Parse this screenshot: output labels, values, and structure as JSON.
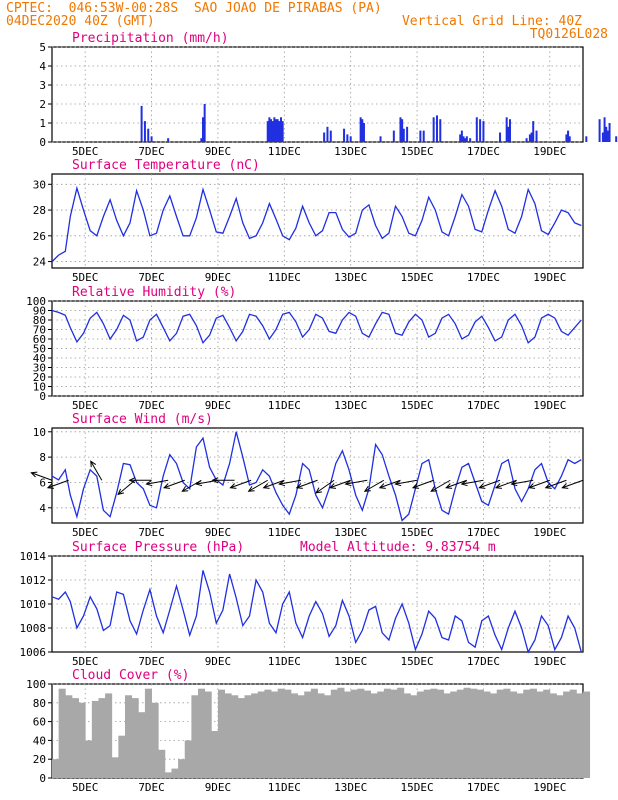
{
  "header": {
    "line1": "CPTEC:  046:53W-00:28S  SAO JOAO DE PIRABAS (PA)",
    "line2_left": "04DEC2020 40Z (GMT)",
    "line2_right": "Vertical Grid Line: 40Z",
    "line3_right": "TQ0126L028"
  },
  "x_ticks": [
    "5DEC",
    "7DEC",
    "9DEC",
    "11DEC",
    "13DEC",
    "15DEC",
    "17DEC",
    "19DEC"
  ],
  "panels": [
    {
      "id": "precip",
      "title": "Precipitation (mm/h)",
      "yticks": [
        "0",
        "1",
        "2",
        "3",
        "4",
        "5"
      ]
    },
    {
      "id": "temp",
      "title": "Surface Temperature (nC)",
      "yticks": [
        "24",
        "26",
        "28",
        "30"
      ]
    },
    {
      "id": "rh",
      "title": "Relative Humidity (%)",
      "yticks": [
        "0",
        "10",
        "20",
        "30",
        "40",
        "50",
        "60",
        "70",
        "80",
        "90",
        "100"
      ]
    },
    {
      "id": "wind",
      "title": "Surface Wind (m/s)",
      "yticks": [
        "4",
        "6",
        "8",
        "10"
      ]
    },
    {
      "id": "pres",
      "title": "Surface Pressure (hPa)",
      "extra": "Model Altitude: 9.83754 m",
      "yticks": [
        "1006",
        "1008",
        "1010",
        "1012",
        "1014"
      ]
    },
    {
      "id": "cloud",
      "title": "Cloud Cover (%)",
      "yticks": [
        "0",
        "20",
        "40",
        "60",
        "80",
        "100"
      ]
    }
  ],
  "colors": {
    "header": "#f07800",
    "title": "#e00080",
    "line": "#2030e0",
    "cloud": "#a8a8a8",
    "grid": "#9a9a9a"
  },
  "chart_data": [
    {
      "type": "bar",
      "title": "Precipitation (mm/h)",
      "x_unit": "days after 04DEC2020 00Z",
      "ylim": [
        0,
        5
      ],
      "x": [
        2.7,
        2.8,
        2.9,
        3.0,
        3.5,
        4.5,
        4.55,
        4.6,
        6.5,
        6.55,
        6.6,
        6.65,
        6.7,
        6.75,
        6.8,
        6.85,
        6.9,
        6.95,
        8.2,
        8.3,
        8.4,
        8.8,
        8.9,
        9.0,
        9.3,
        9.35,
        9.4,
        9.9,
        10.3,
        10.5,
        10.55,
        10.6,
        10.7,
        11.1,
        11.2,
        11.5,
        11.6,
        11.7,
        12.3,
        12.35,
        12.4,
        12.45,
        12.5,
        12.6,
        12.8,
        12.9,
        13.0,
        13.5,
        13.7,
        13.75,
        13.8,
        14.3,
        14.4,
        14.45,
        14.5,
        14.6,
        15.5,
        15.55,
        15.6,
        16.1,
        16.5,
        16.6,
        16.65,
        16.7,
        16.75,
        16.8,
        17.0,
        17.1,
        17.4,
        17.45,
        17.5,
        17.6,
        17.7,
        17.9,
        17.95,
        18.0,
        18.05
      ],
      "values": [
        1.9,
        1.1,
        0.7,
        0.3,
        0.2,
        0.2,
        1.3,
        2.0,
        1.1,
        1.3,
        1.2,
        1.1,
        1.3,
        1.2,
        1.2,
        1.1,
        1.3,
        1.1,
        0.5,
        0.8,
        0.6,
        0.7,
        0.4,
        0.3,
        1.3,
        1.2,
        1.0,
        0.3,
        0.6,
        1.3,
        1.2,
        0.7,
        0.8,
        0.6,
        0.6,
        1.3,
        1.4,
        1.2,
        0.4,
        0.6,
        0.3,
        0.2,
        0.3,
        0.2,
        1.3,
        1.2,
        1.1,
        0.5,
        1.3,
        0.8,
        1.2,
        0.2,
        0.4,
        0.5,
        1.1,
        0.6,
        0.4,
        0.6,
        0.3,
        0.3,
        1.2,
        0.5,
        1.3,
        0.8,
        0.6,
        1.0,
        0.3,
        0.2,
        0.3,
        0.4,
        0.5,
        0.3,
        0.6,
        0.3,
        0.5,
        1.2,
        0.8
      ]
    },
    {
      "type": "line",
      "title": "Surface Temperature (nC)",
      "x_unit": "days after 04DEC2020 00Z",
      "ylim": [
        23.5,
        30.8
      ],
      "x": [
        0,
        0.2,
        0.4,
        0.55,
        0.75,
        0.95,
        1.15,
        1.35,
        1.55,
        1.75,
        1.95,
        2.15,
        2.35,
        2.55,
        2.75,
        2.95,
        3.15,
        3.35,
        3.55,
        3.75,
        3.95,
        4.15,
        4.35,
        4.55,
        4.75,
        4.95,
        5.15,
        5.35,
        5.55,
        5.75,
        5.95,
        6.15,
        6.35,
        6.55,
        6.75,
        6.95,
        7.15,
        7.35,
        7.55,
        7.75,
        7.95,
        8.15,
        8.35,
        8.55,
        8.75,
        8.95,
        9.15,
        9.35,
        9.55,
        9.75,
        9.95,
        10.15,
        10.35,
        10.55,
        10.75,
        10.95,
        11.15,
        11.35,
        11.55,
        11.75,
        11.95,
        12.15,
        12.35,
        12.55,
        12.75,
        12.95,
        13.15,
        13.35,
        13.55,
        13.75,
        13.95,
        14.15,
        14.35,
        14.55,
        14.75,
        14.95,
        15.15,
        15.35,
        15.55,
        15.75,
        15.95
      ],
      "values": [
        24.0,
        24.5,
        24.8,
        27.5,
        29.7,
        28.0,
        26.4,
        26.0,
        27.5,
        28.8,
        27.2,
        26.0,
        27.0,
        29.5,
        28.0,
        26.0,
        26.2,
        28.0,
        29.1,
        27.5,
        26.0,
        26.0,
        27.4,
        29.6,
        28.0,
        26.3,
        26.2,
        27.5,
        28.9,
        27.0,
        25.8,
        26.0,
        27.0,
        28.5,
        27.3,
        26.0,
        25.7,
        26.6,
        28.3,
        27.0,
        26.0,
        26.4,
        27.8,
        27.8,
        26.5,
        25.9,
        26.2,
        28.0,
        28.4,
        26.8,
        25.8,
        26.2,
        28.3,
        27.5,
        26.2,
        26.0,
        27.2,
        29.0,
        28.0,
        26.3,
        26.0,
        27.5,
        29.2,
        28.3,
        26.5,
        26.3,
        28.0,
        29.5,
        28.3,
        26.5,
        26.2,
        27.5,
        29.6,
        28.5,
        26.4,
        26.1,
        27.0,
        28.0,
        27.8,
        27.0,
        26.8
      ]
    },
    {
      "type": "line",
      "title": "Relative Humidity (%)",
      "x_unit": "days after 04DEC2020 00Z",
      "ylim": [
        0,
        100
      ],
      "x": [
        0,
        0.2,
        0.4,
        0.55,
        0.75,
        0.95,
        1.15,
        1.35,
        1.55,
        1.75,
        1.95,
        2.15,
        2.35,
        2.55,
        2.75,
        2.95,
        3.15,
        3.35,
        3.55,
        3.75,
        3.95,
        4.15,
        4.35,
        4.55,
        4.75,
        4.95,
        5.15,
        5.35,
        5.55,
        5.75,
        5.95,
        6.15,
        6.35,
        6.55,
        6.75,
        6.95,
        7.15,
        7.35,
        7.55,
        7.75,
        7.95,
        8.15,
        8.35,
        8.55,
        8.75,
        8.95,
        9.15,
        9.35,
        9.55,
        9.75,
        9.95,
        10.15,
        10.35,
        10.55,
        10.75,
        10.95,
        11.15,
        11.35,
        11.55,
        11.75,
        11.95,
        12.15,
        12.35,
        12.55,
        12.75,
        12.95,
        13.15,
        13.35,
        13.55,
        13.75,
        13.95,
        14.15,
        14.35,
        14.55,
        14.75,
        14.95,
        15.15,
        15.35,
        15.55,
        15.75,
        15.95
      ],
      "values": [
        90,
        88,
        85,
        72,
        57,
        66,
        82,
        88,
        76,
        60,
        70,
        85,
        80,
        58,
        62,
        80,
        86,
        72,
        58,
        66,
        84,
        86,
        74,
        56,
        64,
        82,
        85,
        72,
        58,
        68,
        86,
        84,
        74,
        60,
        70,
        86,
        88,
        78,
        62,
        70,
        86,
        82,
        68,
        66,
        80,
        88,
        84,
        66,
        62,
        76,
        88,
        86,
        66,
        64,
        78,
        86,
        80,
        62,
        66,
        82,
        86,
        76,
        60,
        64,
        78,
        84,
        72,
        58,
        62,
        80,
        86,
        74,
        56,
        62,
        82,
        86,
        82,
        68,
        64,
        72,
        80
      ]
    },
    {
      "type": "line",
      "title": "Surface Wind (m/s)",
      "x_unit": "days after 04DEC2020 00Z",
      "ylim": [
        2.8,
        10.3
      ],
      "x": [
        0,
        0.2,
        0.4,
        0.55,
        0.75,
        0.95,
        1.15,
        1.35,
        1.55,
        1.75,
        1.95,
        2.15,
        2.35,
        2.55,
        2.75,
        2.95,
        3.15,
        3.35,
        3.55,
        3.75,
        3.95,
        4.15,
        4.35,
        4.55,
        4.75,
        4.95,
        5.15,
        5.35,
        5.55,
        5.75,
        5.95,
        6.15,
        6.35,
        6.55,
        6.75,
        6.95,
        7.15,
        7.35,
        7.55,
        7.75,
        7.95,
        8.15,
        8.35,
        8.55,
        8.75,
        8.95,
        9.15,
        9.35,
        9.55,
        9.75,
        9.95,
        10.15,
        10.35,
        10.55,
        10.75,
        10.95,
        11.15,
        11.35,
        11.55,
        11.75,
        11.95,
        12.15,
        12.35,
        12.55,
        12.75,
        12.95,
        13.15,
        13.35,
        13.55,
        13.75,
        13.95,
        14.15,
        14.35,
        14.55,
        14.75,
        14.95,
        15.15,
        15.35,
        15.55,
        15.75,
        15.95
      ],
      "values": [
        6.5,
        6.2,
        7.0,
        5.0,
        3.3,
        5.5,
        7.0,
        6.5,
        3.8,
        3.3,
        5.2,
        7.5,
        7.4,
        6.0,
        5.5,
        4.2,
        4.0,
        6.5,
        8.2,
        7.5,
        6.0,
        5.5,
        8.8,
        9.5,
        7.2,
        6.2,
        5.8,
        7.5,
        10.0,
        8.0,
        5.8,
        6.0,
        7.0,
        6.5,
        5.2,
        4.2,
        3.5,
        5.0,
        7.5,
        7.0,
        5.0,
        4.0,
        5.5,
        7.5,
        8.5,
        7.0,
        5.0,
        3.8,
        5.5,
        9.0,
        8.2,
        6.5,
        5.0,
        3.0,
        3.5,
        5.5,
        7.5,
        7.8,
        5.5,
        3.8,
        3.5,
        5.5,
        7.2,
        7.5,
        6.0,
        4.5,
        4.2,
        5.8,
        7.5,
        7.8,
        5.5,
        4.5,
        5.5,
        7.0,
        7.5,
        6.0,
        5.5,
        6.5,
        7.8,
        7.5,
        7.8
      ]
    },
    {
      "type": "line",
      "title": "Surface Pressure (hPa)",
      "annotation": "Model Altitude: 9.83754 m",
      "x_unit": "days after 04DEC2020 00Z",
      "ylim": [
        1006,
        1014
      ],
      "x": [
        0,
        0.2,
        0.4,
        0.55,
        0.75,
        0.95,
        1.15,
        1.35,
        1.55,
        1.75,
        1.95,
        2.15,
        2.35,
        2.55,
        2.75,
        2.95,
        3.15,
        3.35,
        3.55,
        3.75,
        3.95,
        4.15,
        4.35,
        4.55,
        4.75,
        4.95,
        5.15,
        5.35,
        5.55,
        5.75,
        5.95,
        6.15,
        6.35,
        6.55,
        6.75,
        6.95,
        7.15,
        7.35,
        7.55,
        7.75,
        7.95,
        8.15,
        8.35,
        8.55,
        8.75,
        8.95,
        9.15,
        9.35,
        9.55,
        9.75,
        9.95,
        10.15,
        10.35,
        10.55,
        10.75,
        10.95,
        11.15,
        11.35,
        11.55,
        11.75,
        11.95,
        12.15,
        12.35,
        12.55,
        12.75,
        12.95,
        13.15,
        13.35,
        13.55,
        13.75,
        13.95,
        14.15,
        14.35,
        14.55,
        14.75,
        14.95,
        15.15,
        15.35,
        15.55,
        15.75,
        15.95
      ],
      "values": [
        1010.6,
        1010.4,
        1011.0,
        1010.2,
        1008.0,
        1009.0,
        1010.6,
        1009.6,
        1007.8,
        1008.2,
        1011.0,
        1010.8,
        1008.6,
        1007.5,
        1009.5,
        1011.2,
        1009.0,
        1007.6,
        1009.5,
        1011.5,
        1009.5,
        1007.4,
        1009.0,
        1012.8,
        1011.0,
        1008.4,
        1009.5,
        1012.5,
        1010.5,
        1008.2,
        1009.0,
        1012.0,
        1011.0,
        1008.4,
        1007.6,
        1010.0,
        1011.0,
        1008.4,
        1007.2,
        1009.0,
        1010.2,
        1009.2,
        1007.3,
        1008.2,
        1010.3,
        1009.0,
        1006.8,
        1007.8,
        1009.5,
        1009.8,
        1007.6,
        1007.0,
        1008.8,
        1010.0,
        1008.4,
        1006.2,
        1007.5,
        1009.4,
        1008.8,
        1007.2,
        1007.0,
        1009.0,
        1008.6,
        1006.8,
        1006.4,
        1008.6,
        1009.0,
        1007.4,
        1006.2,
        1008.0,
        1009.4,
        1008.0,
        1006.0,
        1007.0,
        1009.0,
        1008.2,
        1006.2,
        1007.2,
        1009.0,
        1008.0,
        1006.0
      ]
    },
    {
      "type": "area",
      "title": "Cloud Cover (%)",
      "x_unit": "days after 04DEC2020 00Z",
      "ylim": [
        0,
        100
      ],
      "x": [
        0,
        0.2,
        0.4,
        0.6,
        0.8,
        1.0,
        1.2,
        1.4,
        1.6,
        1.8,
        2.0,
        2.2,
        2.4,
        2.6,
        2.8,
        3.0,
        3.2,
        3.4,
        3.6,
        3.8,
        4.0,
        4.2,
        4.4,
        4.6,
        4.8,
        5.0,
        5.2,
        5.4,
        5.6,
        5.8,
        6.0,
        6.2,
        6.4,
        6.6,
        6.8,
        7.0,
        7.2,
        7.4,
        7.6,
        7.8,
        8.0,
        8.2,
        8.4,
        8.6,
        8.8,
        9.0,
        9.2,
        9.4,
        9.6,
        9.8,
        10.0,
        10.2,
        10.4,
        10.6,
        10.8,
        11.0,
        11.2,
        11.4,
        11.6,
        11.8,
        12.0,
        12.2,
        12.4,
        12.6,
        12.8,
        13.0,
        13.2,
        13.4,
        13.6,
        13.8,
        14.0,
        14.2,
        14.4,
        14.6,
        14.8,
        15.0,
        15.2,
        15.4,
        15.6,
        15.8,
        16.0
      ],
      "values": [
        20,
        95,
        88,
        85,
        80,
        40,
        82,
        85,
        90,
        22,
        45,
        88,
        85,
        70,
        95,
        80,
        30,
        6,
        10,
        20,
        40,
        88,
        95,
        92,
        50,
        94,
        90,
        88,
        85,
        88,
        90,
        92,
        94,
        92,
        95,
        94,
        90,
        88,
        92,
        95,
        90,
        88,
        94,
        96,
        92,
        94,
        95,
        93,
        90,
        92,
        95,
        94,
        96,
        90,
        88,
        92,
        94,
        95,
        94,
        90,
        92,
        94,
        96,
        95,
        94,
        92,
        90,
        94,
        95,
        92,
        90,
        94,
        95,
        92,
        94,
        90,
        88,
        92,
        94,
        90,
        92
      ]
    },
    {
      "type": "line",
      "title": "Surface Wind direction vectors (arrow angle in degrees, math convention)",
      "x": [
        0,
        0.5,
        1.5,
        2.5,
        3.0,
        3.5,
        4.0,
        4.5,
        5.0,
        5.5,
        6.0,
        6.5,
        7.0,
        7.5,
        8.0,
        8.5,
        9.0,
        9.5,
        10.0,
        10.5,
        11.0,
        11.5,
        12.0,
        12.5,
        13.0,
        13.5,
        14.0,
        14.5,
        15.0,
        15.5,
        16.0
      ],
      "values": [
        160,
        200,
        120,
        220,
        180,
        190,
        200,
        210,
        190,
        180,
        200,
        210,
        200,
        190,
        200,
        215,
        200,
        190,
        210,
        200,
        190,
        200,
        210,
        200,
        190,
        200,
        200,
        190,
        200,
        200,
        200
      ]
    }
  ]
}
